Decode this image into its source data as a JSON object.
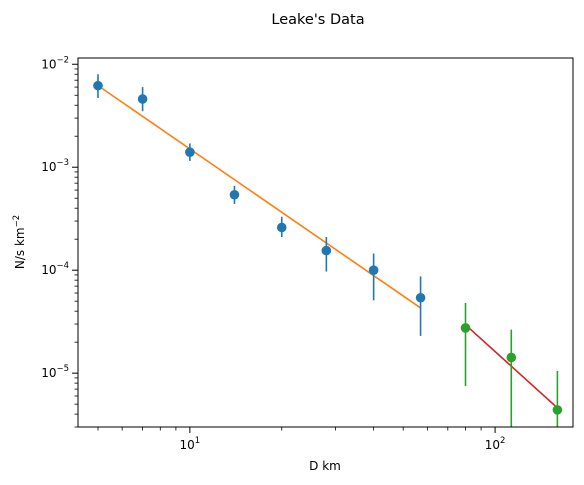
{
  "chart_data": {
    "type": "scatter",
    "title": "Leake's Data",
    "xlabel": "D km",
    "ylabel": "N/s km",
    "ylabel_exp": "−2",
    "xscale": "log",
    "yscale": "log",
    "xlim": [
      4.3,
      180
    ],
    "ylim": [
      3e-06,
      0.0115
    ],
    "grid": false,
    "x_ticks": [
      {
        "value": 10,
        "base": "10",
        "exp": "1"
      },
      {
        "value": 100,
        "base": "10",
        "exp": "2"
      }
    ],
    "y_ticks": [
      {
        "value": 1e-05,
        "base": "10",
        "exp": "−5"
      },
      {
        "value": 0.0001,
        "base": "10",
        "exp": "−4"
      },
      {
        "value": 0.001,
        "base": "10",
        "exp": "−3"
      },
      {
        "value": 0.01,
        "base": "10",
        "exp": "−2"
      }
    ],
    "series": [
      {
        "color": "#1f77b4",
        "points": [
          {
            "x": 5,
            "y": 0.0062,
            "ylo": 0.0047,
            "yhi": 0.008
          },
          {
            "x": 7,
            "y": 0.0046,
            "ylo": 0.0035,
            "yhi": 0.006
          },
          {
            "x": 10,
            "y": 0.0014,
            "ylo": 0.00115,
            "yhi": 0.0017
          },
          {
            "x": 14,
            "y": 0.00054,
            "ylo": 0.00044,
            "yhi": 0.00066
          },
          {
            "x": 20,
            "y": 0.00026,
            "ylo": 0.00021,
            "yhi": 0.00033
          },
          {
            "x": 28,
            "y": 0.000155,
            "ylo": 9.7e-05,
            "yhi": 0.00021
          },
          {
            "x": 40,
            "y": 0.0001,
            "ylo": 5.1e-05,
            "yhi": 0.000145
          },
          {
            "x": 57,
            "y": 5.4e-05,
            "ylo": 2.3e-05,
            "yhi": 8.7e-05
          }
        ]
      },
      {
        "color": "#2ca02c",
        "points": [
          {
            "x": 80,
            "y": 2.75e-05,
            "ylo": 7.5e-06,
            "yhi": 4.8e-05
          },
          {
            "x": 113,
            "y": 1.42e-05,
            "ylo": 3e-06,
            "yhi": 2.65e-05
          },
          {
            "x": 160,
            "y": 4.4e-06,
            "ylo": 3e-06,
            "yhi": 1.05e-05
          }
        ]
      }
    ],
    "fit_lines": [
      {
        "color": "#ff7f0e",
        "x": [
          5,
          57
        ],
        "y": [
          0.0062,
          4.3e-05
        ]
      },
      {
        "color": "#d62728",
        "x": [
          80,
          160
        ],
        "y": [
          2.95e-05,
          4.6e-06
        ]
      }
    ]
  }
}
